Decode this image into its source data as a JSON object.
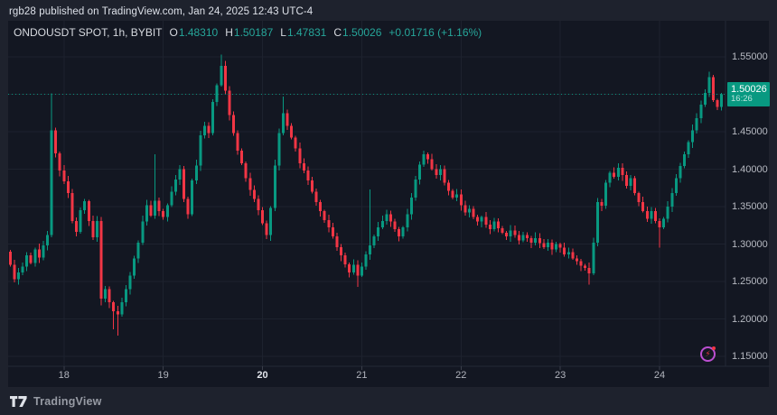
{
  "header": {
    "publish_text": "rgb28 published on TradingView.com, Jan 24, 2025 12:43 UTC-4"
  },
  "chart_panel": {
    "legend": {
      "symbol": "ONDOUSDT SPOT, 1h, BYBIT",
      "ohlc": [
        {
          "label": "O",
          "value": "1.48310"
        },
        {
          "label": "H",
          "value": "1.50187"
        },
        {
          "label": "L",
          "value": "1.47831"
        },
        {
          "label": "C",
          "value": "1.50026"
        }
      ],
      "change": "+0.01716 (+1.16%)"
    },
    "price_axis": {
      "labels": [
        {
          "price": 1.55,
          "text": "1.55000"
        },
        {
          "price": 1.45,
          "text": "1.45000"
        },
        {
          "price": 1.4,
          "text": "1.40000"
        },
        {
          "price": 1.35,
          "text": "1.35000"
        },
        {
          "price": 1.3,
          "text": "1.30000"
        },
        {
          "price": 1.25,
          "text": "1.25000"
        },
        {
          "price": 1.2,
          "text": "1.20000"
        },
        {
          "price": 1.15,
          "text": "1.15000"
        }
      ],
      "gridline_prices": [
        1.55,
        1.5,
        1.45,
        1.4,
        1.35,
        1.3,
        1.25,
        1.2,
        1.15
      ]
    },
    "price_label": {
      "price": "1.50026",
      "time": "16:26",
      "price_value": 1.50026
    },
    "time_axis": {
      "ticks": [
        {
          "text": "18",
          "candle_index": 13,
          "bold": false
        },
        {
          "text": "19",
          "candle_index": 37,
          "bold": false
        },
        {
          "text": "20",
          "candle_index": 61,
          "bold": true
        },
        {
          "text": "21",
          "candle_index": 85,
          "bold": false
        },
        {
          "text": "22",
          "candle_index": 109,
          "bold": false
        },
        {
          "text": "23",
          "candle_index": 133,
          "bold": false
        },
        {
          "text": "24",
          "candle_index": 157,
          "bold": false
        }
      ]
    },
    "flash_icon": {
      "glyph": "⚡"
    }
  },
  "footer": {
    "brand": "TradingView"
  },
  "colors": {
    "up": "#089981",
    "down": "#f23645",
    "teal_text": "#26a69a",
    "badge_bg": "#089981",
    "grid": "#1d222e",
    "panel_bg": "#131722",
    "outer_bg": "#1e222d",
    "axis_separator": "#232836",
    "purple": "#bb4fd1"
  },
  "chart_data": {
    "type": "candlestick",
    "title": "ONDOUSDT SPOT, 1h, BYBIT",
    "interval": "1h",
    "exchange": "BYBIT",
    "ylim": [
      1.15,
      1.55
    ],
    "y_tick_step": 0.05,
    "x_tick_days": [
      "18",
      "19",
      "20",
      "21",
      "22",
      "23",
      "24"
    ],
    "candles_per_day": 24,
    "first_open": 1.29,
    "closes": [
      1.272,
      1.253,
      1.262,
      1.27,
      1.285,
      1.275,
      1.293,
      1.282,
      1.298,
      1.312,
      1.452,
      1.421,
      1.398,
      1.384,
      1.368,
      1.331,
      1.316,
      1.345,
      1.357,
      1.331,
      1.309,
      1.331,
      1.227,
      1.24,
      1.222,
      1.21,
      1.206,
      1.222,
      1.24,
      1.258,
      1.281,
      1.302,
      1.33,
      1.352,
      1.338,
      1.358,
      1.344,
      1.336,
      1.352,
      1.37,
      1.386,
      1.4,
      1.36,
      1.34,
      1.385,
      1.405,
      1.445,
      1.458,
      1.448,
      1.49,
      1.512,
      1.538,
      1.505,
      1.472,
      1.448,
      1.425,
      1.408,
      1.388,
      1.372,
      1.36,
      1.345,
      1.328,
      1.312,
      1.348,
      1.405,
      1.448,
      1.475,
      1.458,
      1.442,
      1.428,
      1.408,
      1.398,
      1.385,
      1.37,
      1.356,
      1.344,
      1.332,
      1.322,
      1.31,
      1.296,
      1.285,
      1.273,
      1.262,
      1.272,
      1.258,
      1.27,
      1.286,
      1.298,
      1.31,
      1.322,
      1.331,
      1.34,
      1.33,
      1.32,
      1.31,
      1.322,
      1.34,
      1.362,
      1.386,
      1.406,
      1.42,
      1.413,
      1.4,
      1.392,
      1.4,
      1.382,
      1.371,
      1.362,
      1.366,
      1.352,
      1.342,
      1.347,
      1.336,
      1.33,
      1.336,
      1.326,
      1.32,
      1.33,
      1.321,
      1.315,
      1.31,
      1.318,
      1.312,
      1.305,
      1.312,
      1.308,
      1.302,
      1.308,
      1.301,
      1.296,
      1.302,
      1.293,
      1.3,
      1.295,
      1.286,
      1.289,
      1.281,
      1.277,
      1.271,
      1.268,
      1.261,
      1.302,
      1.356,
      1.351,
      1.382,
      1.395,
      1.39,
      1.402,
      1.392,
      1.378,
      1.388,
      1.368,
      1.356,
      1.344,
      1.334,
      1.344,
      1.331,
      1.322,
      1.334,
      1.35,
      1.368,
      1.388,
      1.404,
      1.42,
      1.436,
      1.452,
      1.468,
      1.486,
      1.502,
      1.523,
      1.492,
      1.4831,
      1.50026
    ],
    "wick_overrides": {
      "10": {
        "high": 1.501
      },
      "22": {
        "low": 1.218
      },
      "25": {
        "low": 1.186
      },
      "26": {
        "low": 1.178
      },
      "35": {
        "high": 1.42
      },
      "51": {
        "high": 1.553
      },
      "66": {
        "high": 1.497
      },
      "84": {
        "low": 1.243
      },
      "87": {
        "high": 1.373
      },
      "100": {
        "high": 1.425
      },
      "140": {
        "low": 1.246
      },
      "147": {
        "high": 1.408
      },
      "157": {
        "low": 1.295
      },
      "169": {
        "high": 1.53
      },
      "172": {
        "high": 1.50187,
        "low": 1.47831
      }
    },
    "last_candle": {
      "open": 1.4831,
      "high": 1.50187,
      "low": 1.47831,
      "close": 1.50026,
      "change": "+0.01716",
      "change_pct": "+1.16%"
    }
  }
}
